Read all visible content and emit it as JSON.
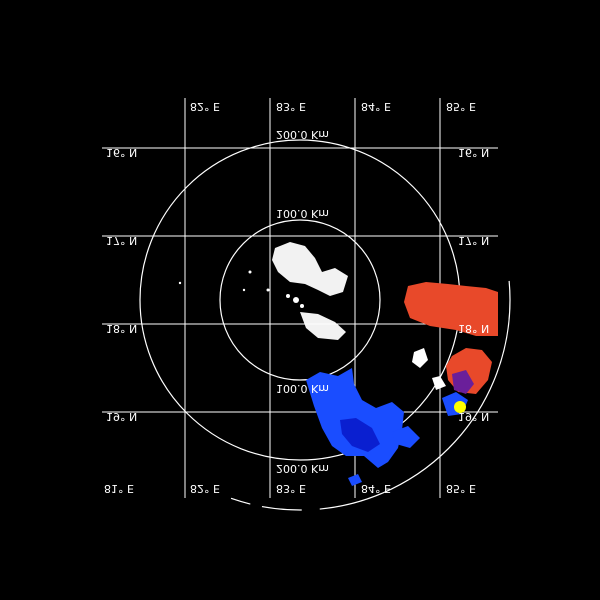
{
  "colors": {
    "background": "#000000",
    "grid": "#ffffff",
    "echo_white": "#ffffff",
    "echo_red": "#e8492a",
    "echo_blue_light": "#1a4dff",
    "echo_blue_dark": "#0a1fd0",
    "echo_purple": "#6a1f9a",
    "marker": "#ffff00"
  },
  "range_rings": {
    "inner_label": "100.0 Km",
    "inner_label_bottom": "100.0 Km",
    "outer_label": "200.0 Km",
    "outer_label_bottom": "200.0 Km"
  },
  "longitude_labels_top": [
    "82° E",
    "83° E",
    "84° E",
    "85° E"
  ],
  "longitude_labels_bottom": [
    "81° E",
    "82° E",
    "83° E",
    "84° E",
    "85° E"
  ],
  "latitude_labels_left": [
    "16° N",
    "17° N",
    "18° N",
    "19° N"
  ],
  "latitude_labels_right": [
    "16° N",
    "17° N",
    "18° N",
    "19° N"
  ],
  "marker": {
    "label": "station",
    "icon": "yellow-dot"
  }
}
